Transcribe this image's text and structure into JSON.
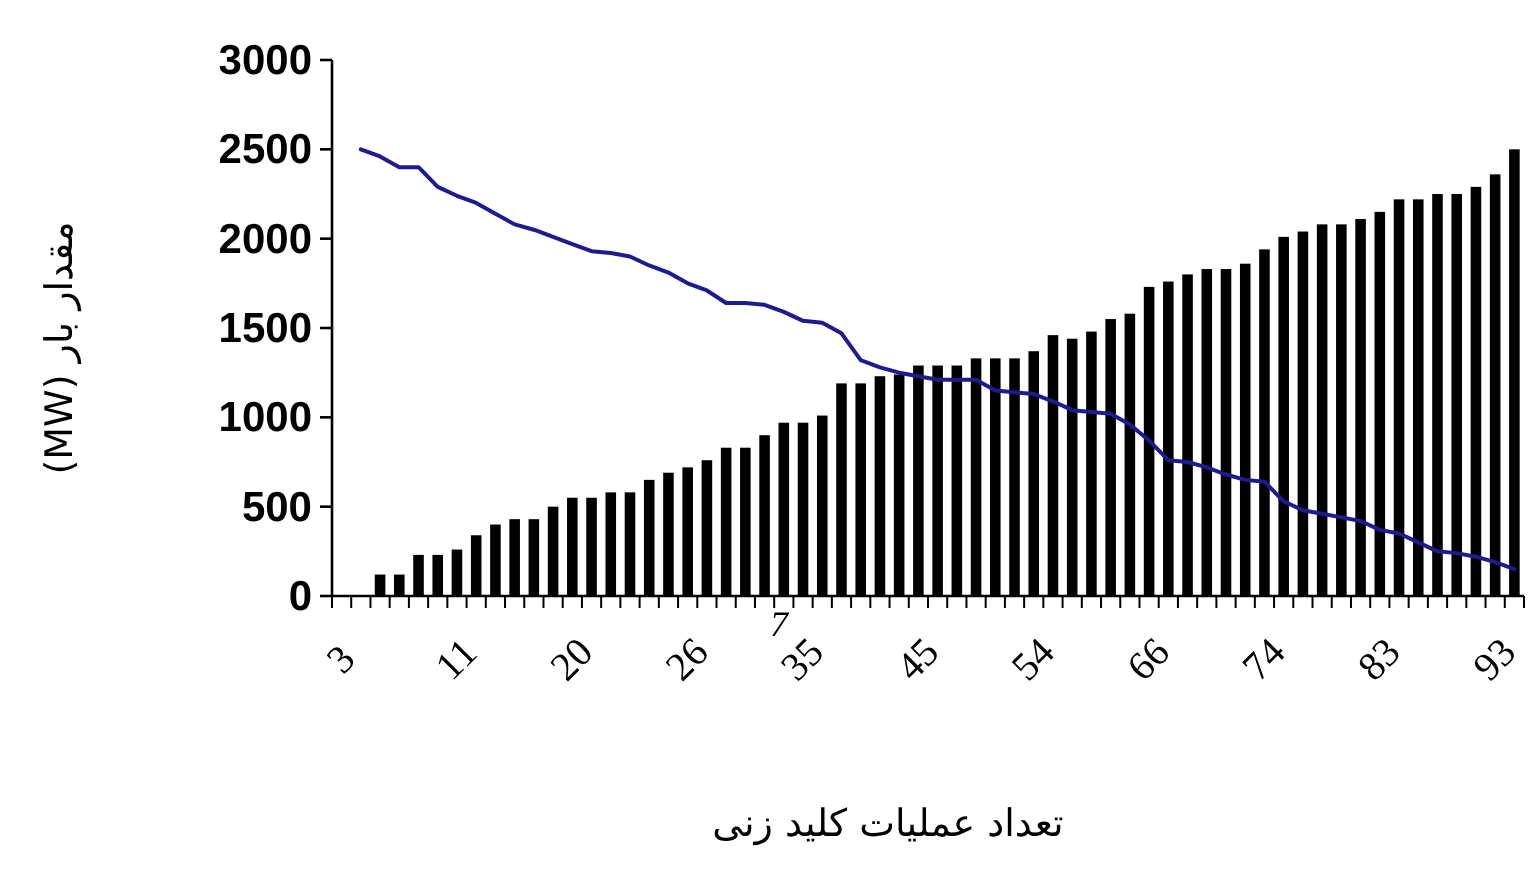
{
  "chart_data": {
    "type": "bar",
    "xlabel": "تعداد عملیات کلید زنی",
    "ylabel": "مقدار بار (MW)",
    "categories": [
      "3",
      null,
      null,
      null,
      null,
      null,
      "11",
      null,
      null,
      null,
      null,
      null,
      "20",
      null,
      null,
      null,
      null,
      null,
      "26",
      null,
      null,
      null,
      null,
      null,
      "35",
      null,
      null,
      null,
      null,
      null,
      "45",
      null,
      null,
      null,
      null,
      null,
      "54",
      null,
      null,
      null,
      null,
      null,
      "66",
      null,
      null,
      null,
      null,
      null,
      "74",
      null,
      null,
      null,
      null,
      null,
      "83",
      null,
      null,
      null,
      null,
      null,
      "93",
      null
    ],
    "series": [
      {
        "color": "#000000",
        "values": [
          null,
          null,
          120,
          120,
          230,
          230,
          260,
          340,
          400,
          430,
          430,
          500,
          550,
          550,
          580,
          580,
          650,
          690,
          720,
          760,
          830,
          830,
          900,
          970,
          970,
          1010,
          1190,
          1190,
          1230,
          1240,
          1290,
          1290,
          1290,
          1330,
          1330,
          1330,
          1370,
          1460,
          1440,
          1480,
          1550,
          1580,
          1730,
          1760,
          1800,
          1830,
          1830,
          1860,
          1940,
          2010,
          2040,
          2080,
          2080,
          2110,
          2150,
          2220,
          2220,
          2250,
          2250,
          2290,
          2360,
          2500
        ]
      },
      {
        "type": "line",
        "color": "#1c1c8e",
        "values": [
          null,
          2500,
          2460,
          2400,
          2400,
          2290,
          2240,
          2200,
          2140,
          2080,
          2050,
          2010,
          1970,
          1930,
          1920,
          1900,
          1850,
          1810,
          1750,
          1710,
          1640,
          1640,
          1630,
          1590,
          1540,
          1530,
          1470,
          1320,
          1280,
          1250,
          1230,
          1210,
          1210,
          1210,
          1150,
          1140,
          1130,
          1090,
          1040,
          1030,
          1020,
          960,
          870,
          760,
          750,
          720,
          680,
          650,
          640,
          530,
          480,
          460,
          440,
          420,
          370,
          350,
          300,
          250,
          240,
          220,
          190,
          150
        ]
      }
    ],
    "ylim": [
      0,
      3000
    ],
    "yticks": [
      0,
      500,
      1000,
      1500,
      2000,
      2500,
      3000
    ],
    "annotations": [
      "7"
    ]
  }
}
